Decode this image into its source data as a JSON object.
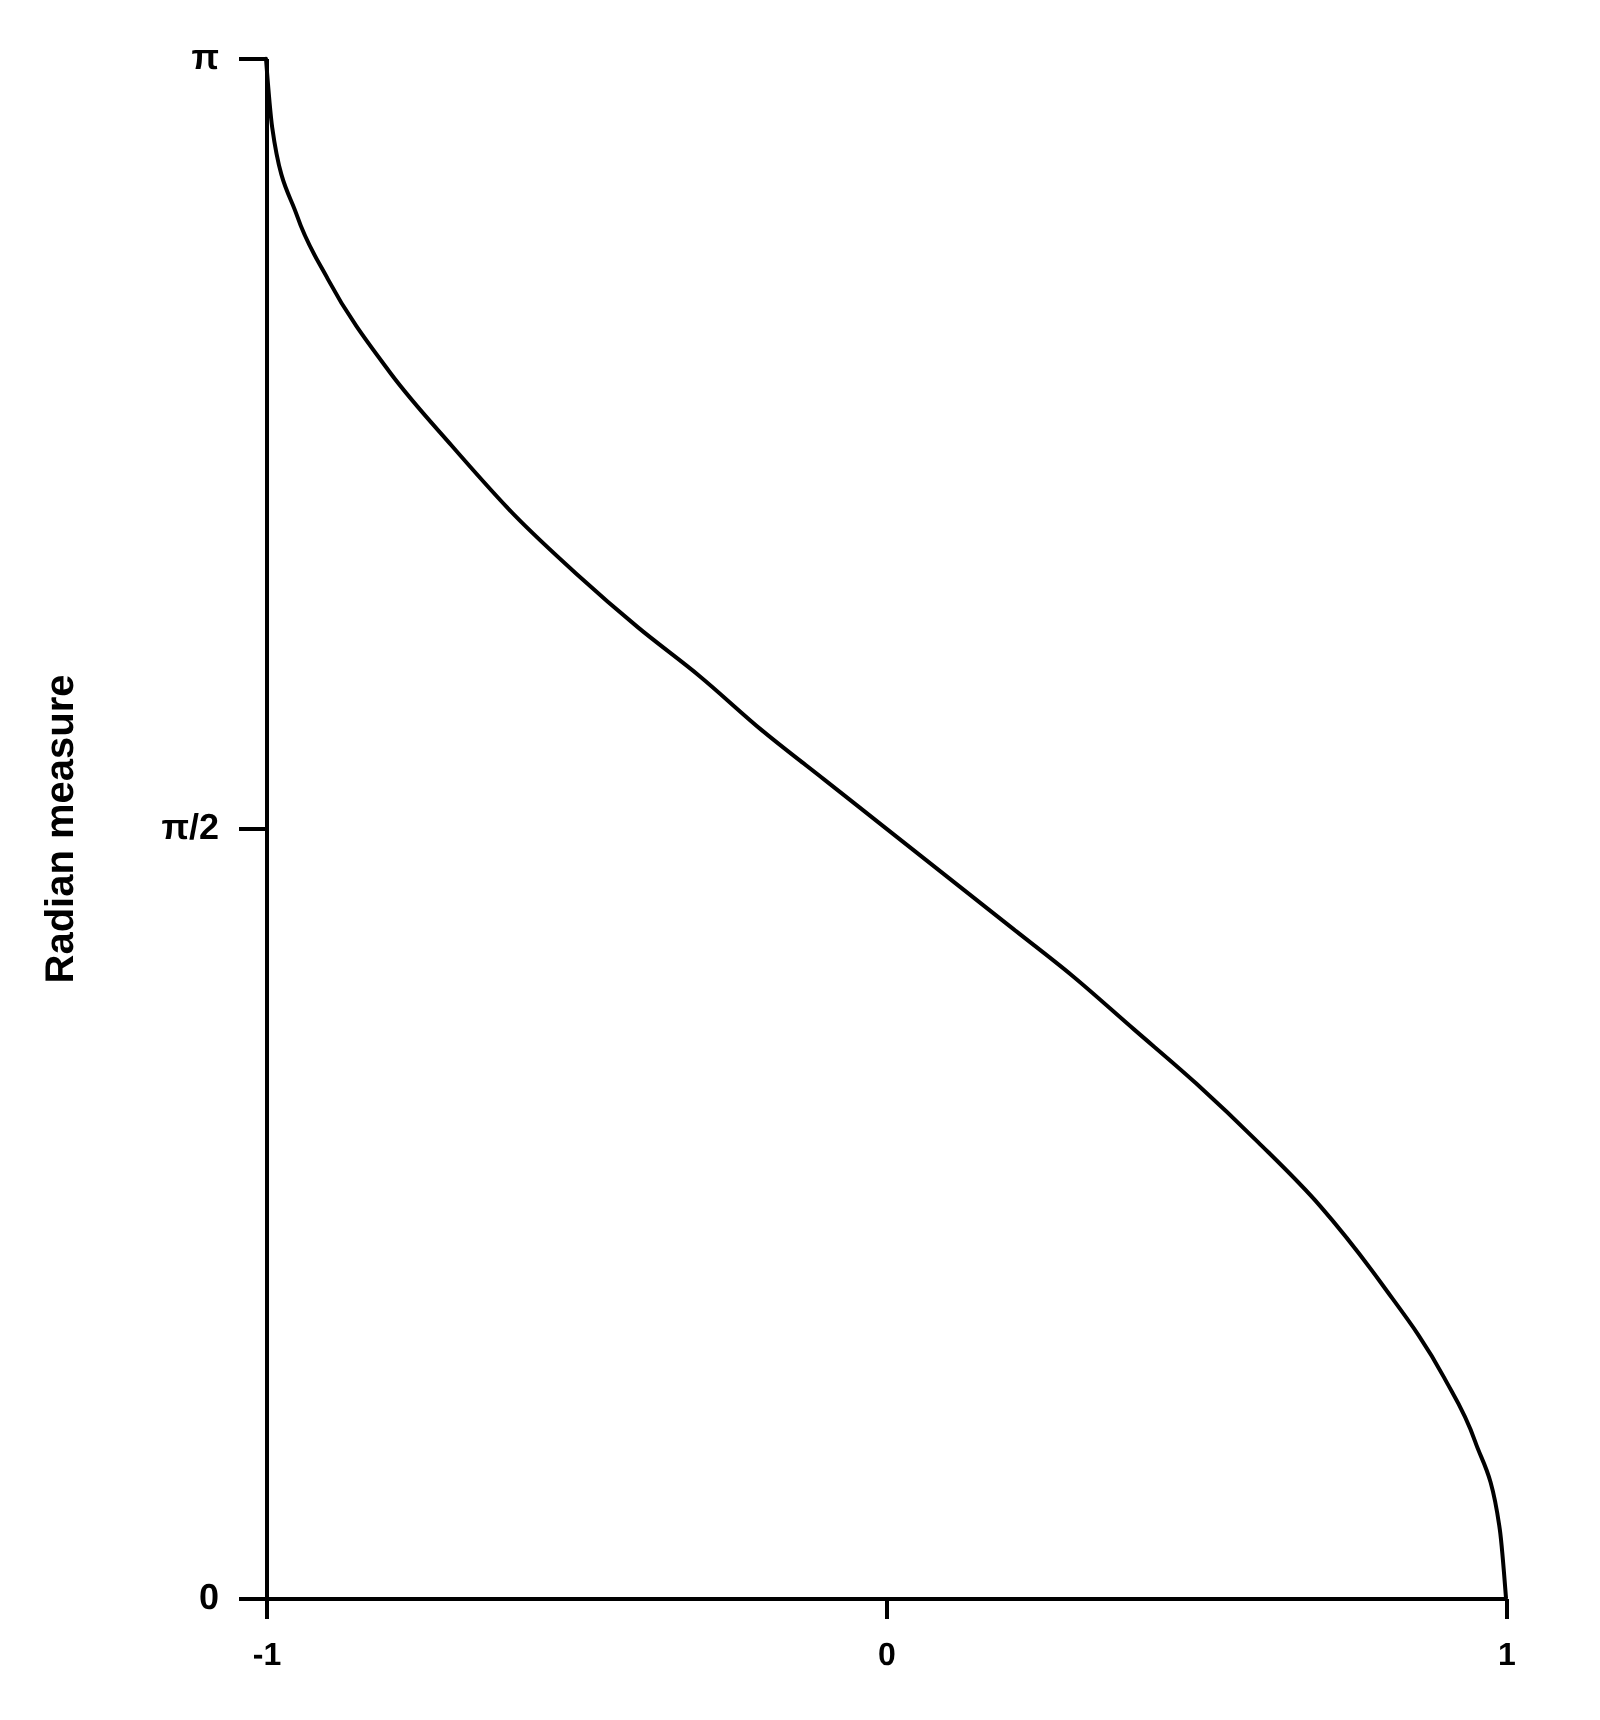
{
  "chart_data": {
    "type": "line",
    "ylabel": "Radian   measure",
    "x": [
      -1,
      -0.99,
      -0.95,
      -0.9,
      -0.8,
      -0.7,
      -0.6,
      -0.5,
      -0.4,
      -0.3,
      -0.2,
      -0.1,
      0,
      0.1,
      0.2,
      0.3,
      0.4,
      0.5,
      0.6,
      0.7,
      0.8,
      0.9,
      0.95,
      0.99,
      1
    ],
    "series": [
      {
        "color": "#000000",
        "values": [
          3.14,
          3.0,
          2.82,
          2.69,
          2.5,
          2.35,
          2.21,
          2.09,
          1.98,
          1.88,
          1.77,
          1.67,
          1.57,
          1.47,
          1.37,
          1.27,
          1.16,
          1.05,
          0.93,
          0.8,
          0.64,
          0.45,
          0.32,
          0.14,
          0
        ]
      }
    ],
    "xlim": [
      -1,
      1
    ],
    "xticks": [
      -1,
      0,
      1
    ],
    "ylim": [
      0,
      3.1416
    ],
    "yticks": [
      0,
      {
        "value": 1.5708,
        "label": "π/2"
      },
      {
        "value": 3.1416,
        "label": "π"
      }
    ],
    "grid": false,
    "marker": "none",
    "line_style": "solid"
  }
}
